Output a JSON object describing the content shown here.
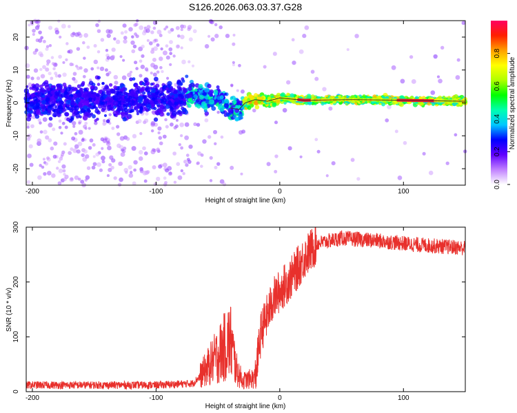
{
  "title": "S126.2026.063.03.37.G28",
  "chart_data": [
    {
      "type": "scatter",
      "title": "S126.2026.063.03.37.G28",
      "xlabel": "Height of straight line (km)",
      "ylabel": "Frequency (Hz)",
      "xlim": [
        -205,
        150
      ],
      "ylim": [
        -25,
        25
      ],
      "xticks": [
        -200,
        -100,
        0,
        100
      ],
      "yticks": [
        -20,
        -10,
        0,
        10,
        20
      ],
      "colorbar": {
        "label": "Normalized spectral amplitude",
        "range": [
          0,
          1
        ],
        "ticks": [
          "0.0",
          "0.2",
          "0.4",
          "0.6",
          "0.8"
        ],
        "colors": [
          "#ffffff",
          "#c080ff",
          "#6000ff",
          "#0000ff",
          "#00c8ff",
          "#00ffb0",
          "#00ff00",
          "#b0ff00",
          "#ffff00",
          "#ffa000",
          "#ff2000",
          "#ff0060"
        ]
      },
      "centerline": [
        {
          "x": -205,
          "y": 0.5
        },
        {
          "x": -120,
          "y": 0.8
        },
        {
          "x": -80,
          "y": 1.5
        },
        {
          "x": -70,
          "y": 3
        },
        {
          "x": -60,
          "y": 1
        },
        {
          "x": -50,
          "y": 1.5
        },
        {
          "x": -40,
          "y": -1.5
        },
        {
          "x": -33,
          "y": -2
        },
        {
          "x": -28,
          "y": 0
        },
        {
          "x": -20,
          "y": 1
        },
        {
          "x": -10,
          "y": 0.5
        },
        {
          "x": 0,
          "y": 1.5
        },
        {
          "x": 20,
          "y": 0.8
        },
        {
          "x": 60,
          "y": 1
        },
        {
          "x": 100,
          "y": 0.8
        },
        {
          "x": 150,
          "y": 0.5
        }
      ]
    },
    {
      "type": "line",
      "xlabel": "Height of straight line (km)",
      "ylabel": "SNR (10 * v/v)",
      "xlim": [
        -205,
        150
      ],
      "ylim": [
        0,
        300
      ],
      "xticks": [
        -200,
        -100,
        0,
        100
      ],
      "yticks": [
        0,
        100,
        200,
        300
      ],
      "color": "#e8302c",
      "series_profile": [
        {
          "x": -205,
          "y": 12
        },
        {
          "x": -100,
          "y": 12
        },
        {
          "x": -70,
          "y": 15
        },
        {
          "x": -60,
          "y": 40
        },
        {
          "x": -45,
          "y": 80
        },
        {
          "x": -40,
          "y": 95
        },
        {
          "x": -35,
          "y": 40
        },
        {
          "x": -30,
          "y": 20
        },
        {
          "x": -20,
          "y": 25
        },
        {
          "x": -15,
          "y": 110
        },
        {
          "x": -5,
          "y": 170
        },
        {
          "x": 10,
          "y": 210
        },
        {
          "x": 20,
          "y": 245
        },
        {
          "x": 30,
          "y": 270
        },
        {
          "x": 50,
          "y": 280
        },
        {
          "x": 80,
          "y": 275
        },
        {
          "x": 110,
          "y": 268
        },
        {
          "x": 150,
          "y": 262
        }
      ]
    }
  ]
}
